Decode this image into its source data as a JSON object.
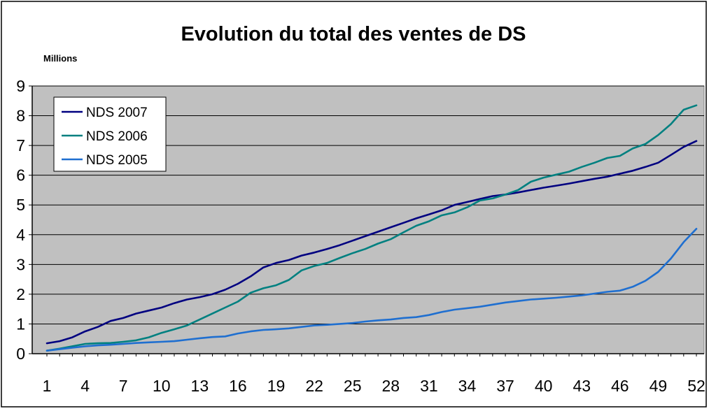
{
  "chart_data": {
    "type": "line",
    "title": "Evolution du total des ventes de DS",
    "ylabel": "Millions",
    "xlabel": "",
    "x": [
      1,
      2,
      3,
      4,
      5,
      6,
      7,
      8,
      9,
      10,
      11,
      12,
      13,
      14,
      15,
      16,
      17,
      18,
      19,
      20,
      21,
      22,
      23,
      24,
      25,
      26,
      27,
      28,
      29,
      30,
      31,
      32,
      33,
      34,
      35,
      36,
      37,
      38,
      39,
      40,
      41,
      42,
      43,
      44,
      45,
      46,
      47,
      48,
      49,
      50,
      51,
      52
    ],
    "xticks": [
      "1",
      "4",
      "7",
      "10",
      "13",
      "16",
      "19",
      "22",
      "25",
      "28",
      "31",
      "34",
      "37",
      "40",
      "43",
      "46",
      "49",
      "52"
    ],
    "xlim": [
      1,
      52
    ],
    "ylim": [
      0,
      9
    ],
    "yticks": [
      "0",
      "1",
      "2",
      "3",
      "4",
      "5",
      "6",
      "7",
      "8",
      "9"
    ],
    "grid": true,
    "legend_position": "top-left",
    "background": "#c0c0c0",
    "series": [
      {
        "name": "NDS 2007",
        "color": "#000080",
        "values": [
          0.35,
          0.42,
          0.55,
          0.75,
          0.9,
          1.1,
          1.2,
          1.35,
          1.45,
          1.55,
          1.7,
          1.82,
          1.9,
          2.0,
          2.15,
          2.35,
          2.6,
          2.9,
          3.05,
          3.15,
          3.3,
          3.4,
          3.52,
          3.65,
          3.8,
          3.95,
          4.1,
          4.25,
          4.4,
          4.55,
          4.68,
          4.82,
          5.0,
          5.1,
          5.2,
          5.3,
          5.35,
          5.42,
          5.5,
          5.58,
          5.65,
          5.72,
          5.8,
          5.88,
          5.95,
          6.05,
          6.15,
          6.28,
          6.42,
          6.68,
          6.95,
          7.15
        ]
      },
      {
        "name": "NDS 2006",
        "color": "#008080",
        "values": [
          0.1,
          0.17,
          0.25,
          0.33,
          0.35,
          0.36,
          0.4,
          0.45,
          0.55,
          0.7,
          0.82,
          0.95,
          1.15,
          1.35,
          1.55,
          1.75,
          2.05,
          2.2,
          2.3,
          2.48,
          2.8,
          2.95,
          3.05,
          3.22,
          3.38,
          3.52,
          3.7,
          3.85,
          4.08,
          4.3,
          4.45,
          4.65,
          4.75,
          4.92,
          5.15,
          5.22,
          5.35,
          5.5,
          5.78,
          5.92,
          6.02,
          6.12,
          6.28,
          6.42,
          6.58,
          6.65,
          6.9,
          7.05,
          7.35,
          7.72,
          8.2,
          8.35
        ]
      },
      {
        "name": "NDS 2005",
        "color": "#1f6fd0",
        "values": [
          0.1,
          0.15,
          0.2,
          0.25,
          0.28,
          0.3,
          0.33,
          0.36,
          0.38,
          0.4,
          0.42,
          0.47,
          0.52,
          0.56,
          0.58,
          0.68,
          0.75,
          0.8,
          0.82,
          0.85,
          0.9,
          0.95,
          0.97,
          1.0,
          1.03,
          1.08,
          1.12,
          1.15,
          1.2,
          1.23,
          1.3,
          1.4,
          1.48,
          1.53,
          1.58,
          1.65,
          1.72,
          1.77,
          1.82,
          1.85,
          1.88,
          1.92,
          1.96,
          2.02,
          2.08,
          2.12,
          2.25,
          2.45,
          2.75,
          3.2,
          3.75,
          4.2
        ]
      }
    ]
  }
}
